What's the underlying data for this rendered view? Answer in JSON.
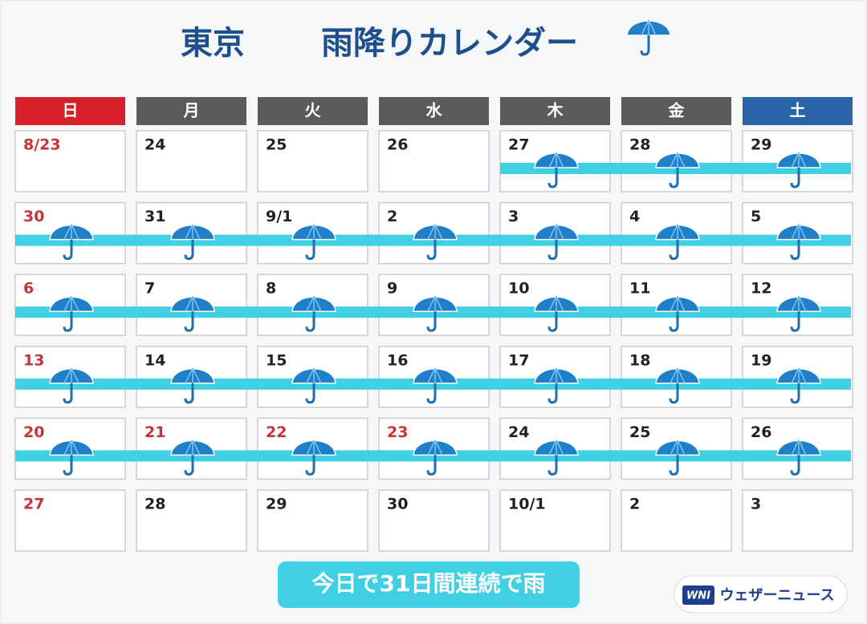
{
  "header": {
    "city": "東京",
    "title": "雨降りカレンダー"
  },
  "weekdays": [
    {
      "label": "日",
      "color": "#d7202a"
    },
    {
      "label": "月",
      "color": "#5b5b5b"
    },
    {
      "label": "火",
      "color": "#5b5b5b"
    },
    {
      "label": "水",
      "color": "#5b5b5b"
    },
    {
      "label": "木",
      "color": "#5b5b5b"
    },
    {
      "label": "金",
      "color": "#5b5b5b"
    },
    {
      "label": "土",
      "color": "#2a64a8"
    }
  ],
  "weeks": [
    [
      {
        "date": "8/23",
        "rain": false,
        "holiday": true
      },
      {
        "date": "24",
        "rain": false,
        "holiday": false
      },
      {
        "date": "25",
        "rain": false,
        "holiday": false
      },
      {
        "date": "26",
        "rain": false,
        "holiday": false
      },
      {
        "date": "27",
        "rain": true,
        "holiday": false
      },
      {
        "date": "28",
        "rain": true,
        "holiday": false
      },
      {
        "date": "29",
        "rain": true,
        "holiday": false
      }
    ],
    [
      {
        "date": "30",
        "rain": true,
        "holiday": true
      },
      {
        "date": "31",
        "rain": true,
        "holiday": false
      },
      {
        "date": "9/1",
        "rain": true,
        "holiday": false
      },
      {
        "date": "2",
        "rain": true,
        "holiday": false
      },
      {
        "date": "3",
        "rain": true,
        "holiday": false
      },
      {
        "date": "4",
        "rain": true,
        "holiday": false
      },
      {
        "date": "5",
        "rain": true,
        "holiday": false
      }
    ],
    [
      {
        "date": "6",
        "rain": true,
        "holiday": true
      },
      {
        "date": "7",
        "rain": true,
        "holiday": false
      },
      {
        "date": "8",
        "rain": true,
        "holiday": false
      },
      {
        "date": "9",
        "rain": true,
        "holiday": false
      },
      {
        "date": "10",
        "rain": true,
        "holiday": false
      },
      {
        "date": "11",
        "rain": true,
        "holiday": false
      },
      {
        "date": "12",
        "rain": true,
        "holiday": false
      }
    ],
    [
      {
        "date": "13",
        "rain": true,
        "holiday": true
      },
      {
        "date": "14",
        "rain": true,
        "holiday": false
      },
      {
        "date": "15",
        "rain": true,
        "holiday": false
      },
      {
        "date": "16",
        "rain": true,
        "holiday": false
      },
      {
        "date": "17",
        "rain": true,
        "holiday": false
      },
      {
        "date": "18",
        "rain": true,
        "holiday": false
      },
      {
        "date": "19",
        "rain": true,
        "holiday": false
      }
    ],
    [
      {
        "date": "20",
        "rain": true,
        "holiday": true
      },
      {
        "date": "21",
        "rain": true,
        "holiday": true
      },
      {
        "date": "22",
        "rain": true,
        "holiday": true
      },
      {
        "date": "23",
        "rain": true,
        "holiday": true
      },
      {
        "date": "24",
        "rain": true,
        "holiday": false
      },
      {
        "date": "25",
        "rain": true,
        "holiday": false
      },
      {
        "date": "26",
        "rain": true,
        "holiday": false
      }
    ],
    [
      {
        "date": "27",
        "rain": false,
        "holiday": true
      },
      {
        "date": "28",
        "rain": false,
        "holiday": false
      },
      {
        "date": "29",
        "rain": false,
        "holiday": false
      },
      {
        "date": "30",
        "rain": false,
        "holiday": false
      },
      {
        "date": "10/1",
        "rain": false,
        "holiday": false
      },
      {
        "date": "2",
        "rain": false,
        "holiday": false
      },
      {
        "date": "3",
        "rain": false,
        "holiday": false
      }
    ]
  ],
  "footer": {
    "banner": "今日で31日間連続で雨",
    "logo_mark": "WNI",
    "logo_text": "ウェザーニュース"
  }
}
